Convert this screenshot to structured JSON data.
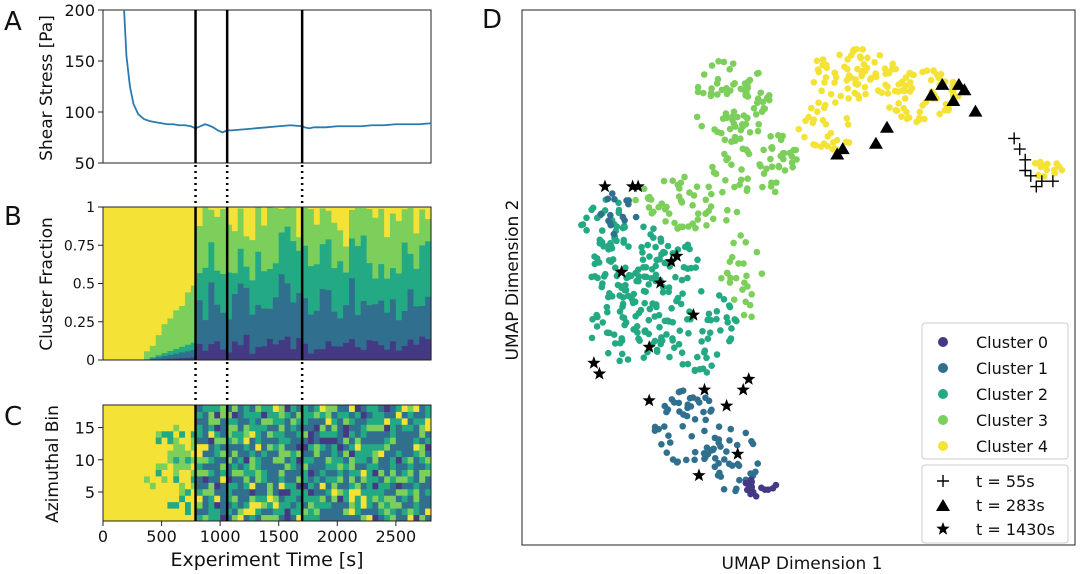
{
  "chart_data": [
    {
      "panel": "A",
      "type": "line",
      "ylabel": "Shear Stress [Pa]",
      "ylim": [
        50,
        200
      ],
      "xlim": [
        0,
        2800
      ],
      "yticks": [
        "50",
        "100",
        "150",
        "200"
      ],
      "series": [
        {
          "name": "shear stress",
          "color": "#2a7ab0",
          "x": [
            180,
            200,
            230,
            260,
            300,
            350,
            400,
            450,
            500,
            550,
            600,
            650,
            700,
            750,
            790,
            830,
            870,
            900,
            940,
            980,
            1020,
            1040,
            1060,
            1100,
            1200,
            1300,
            1400,
            1500,
            1600,
            1700,
            1720,
            1760,
            1800,
            1900,
            2000,
            2100,
            2200,
            2300,
            2400,
            2500,
            2600,
            2700,
            2800
          ],
          "y": [
            200,
            155,
            125,
            108,
            98,
            93,
            91,
            90,
            89,
            88,
            88,
            87,
            87,
            86,
            84,
            86,
            88,
            87,
            85,
            82,
            80,
            81,
            82,
            82,
            83,
            84,
            85,
            86,
            87,
            86,
            85,
            84,
            85,
            85,
            86,
            86,
            86,
            87,
            87,
            88,
            88,
            88,
            89
          ]
        }
      ],
      "vlines": [
        790,
        1060,
        1700
      ]
    },
    {
      "panel": "B",
      "type": "area",
      "ylabel": "Cluster Fraction",
      "ylim": [
        0,
        1
      ],
      "yticks": [
        "0",
        "0.25",
        "0.5",
        "0.75",
        "1"
      ],
      "xlim": [
        0,
        2800
      ],
      "vlines": [
        790,
        1060,
        1700
      ],
      "note": "stacked cluster fractions over time; colors per cluster 0-4"
    },
    {
      "panel": "C",
      "type": "heatmap",
      "ylabel": "Azimuthal Bin",
      "yticks": [
        "5",
        "10",
        "15"
      ],
      "xlabel": "Experiment Time [s]",
      "xticks": [
        "0",
        "500",
        "1000",
        "1500",
        "2000",
        "2500"
      ],
      "xlim": [
        0,
        2800
      ],
      "vlines": [
        790,
        1060,
        1700
      ]
    },
    {
      "panel": "D",
      "type": "scatter",
      "xlabel": "UMAP Dimension 1",
      "ylabel": "UMAP Dimension 2",
      "legend_clusters": [
        {
          "label": "Cluster 0",
          "color": "#443a83"
        },
        {
          "label": "Cluster 1",
          "color": "#30708e"
        },
        {
          "label": "Cluster 2",
          "color": "#23a983"
        },
        {
          "label": "Cluster 3",
          "color": "#7ccf5a"
        },
        {
          "label": "Cluster 4",
          "color": "#f4e336"
        }
      ],
      "legend_markers": [
        {
          "label": "t = 55s",
          "marker": "plus"
        },
        {
          "label": "t = 283s",
          "marker": "triangle"
        },
        {
          "label": "t = 1430s",
          "marker": "star"
        }
      ],
      "highlight_points": {
        "plus": [
          [
            0.89,
            0.76
          ],
          [
            0.9,
            0.74
          ],
          [
            0.91,
            0.72
          ],
          [
            0.91,
            0.7
          ],
          [
            0.92,
            0.69
          ],
          [
            0.94,
            0.68
          ],
          [
            0.96,
            0.68
          ],
          [
            0.93,
            0.67
          ]
        ],
        "triangle": [
          [
            0.74,
            0.84
          ],
          [
            0.76,
            0.86
          ],
          [
            0.78,
            0.83
          ],
          [
            0.79,
            0.86
          ],
          [
            0.8,
            0.85
          ],
          [
            0.82,
            0.81
          ],
          [
            0.66,
            0.78
          ],
          [
            0.57,
            0.73
          ],
          [
            0.58,
            0.74
          ],
          [
            0.64,
            0.75
          ]
        ],
        "star": [
          [
            0.15,
            0.67
          ],
          [
            0.2,
            0.67
          ],
          [
            0.21,
            0.67
          ],
          [
            0.27,
            0.53
          ],
          [
            0.28,
            0.54
          ],
          [
            0.18,
            0.51
          ],
          [
            0.25,
            0.49
          ],
          [
            0.31,
            0.43
          ],
          [
            0.23,
            0.37
          ],
          [
            0.13,
            0.34
          ],
          [
            0.14,
            0.32
          ],
          [
            0.23,
            0.27
          ],
          [
            0.33,
            0.29
          ],
          [
            0.37,
            0.26
          ],
          [
            0.4,
            0.29
          ],
          [
            0.41,
            0.31
          ],
          [
            0.39,
            0.17
          ],
          [
            0.32,
            0.13
          ]
        ]
      }
    }
  ],
  "panel_letters": [
    "A",
    "B",
    "C",
    "D"
  ],
  "colors": {
    "cluster0": "#443a83",
    "cluster1": "#30708e",
    "cluster2": "#23a983",
    "cluster3": "#7ccf5a",
    "cluster4": "#f4e336",
    "line": "#2a7ab0"
  }
}
